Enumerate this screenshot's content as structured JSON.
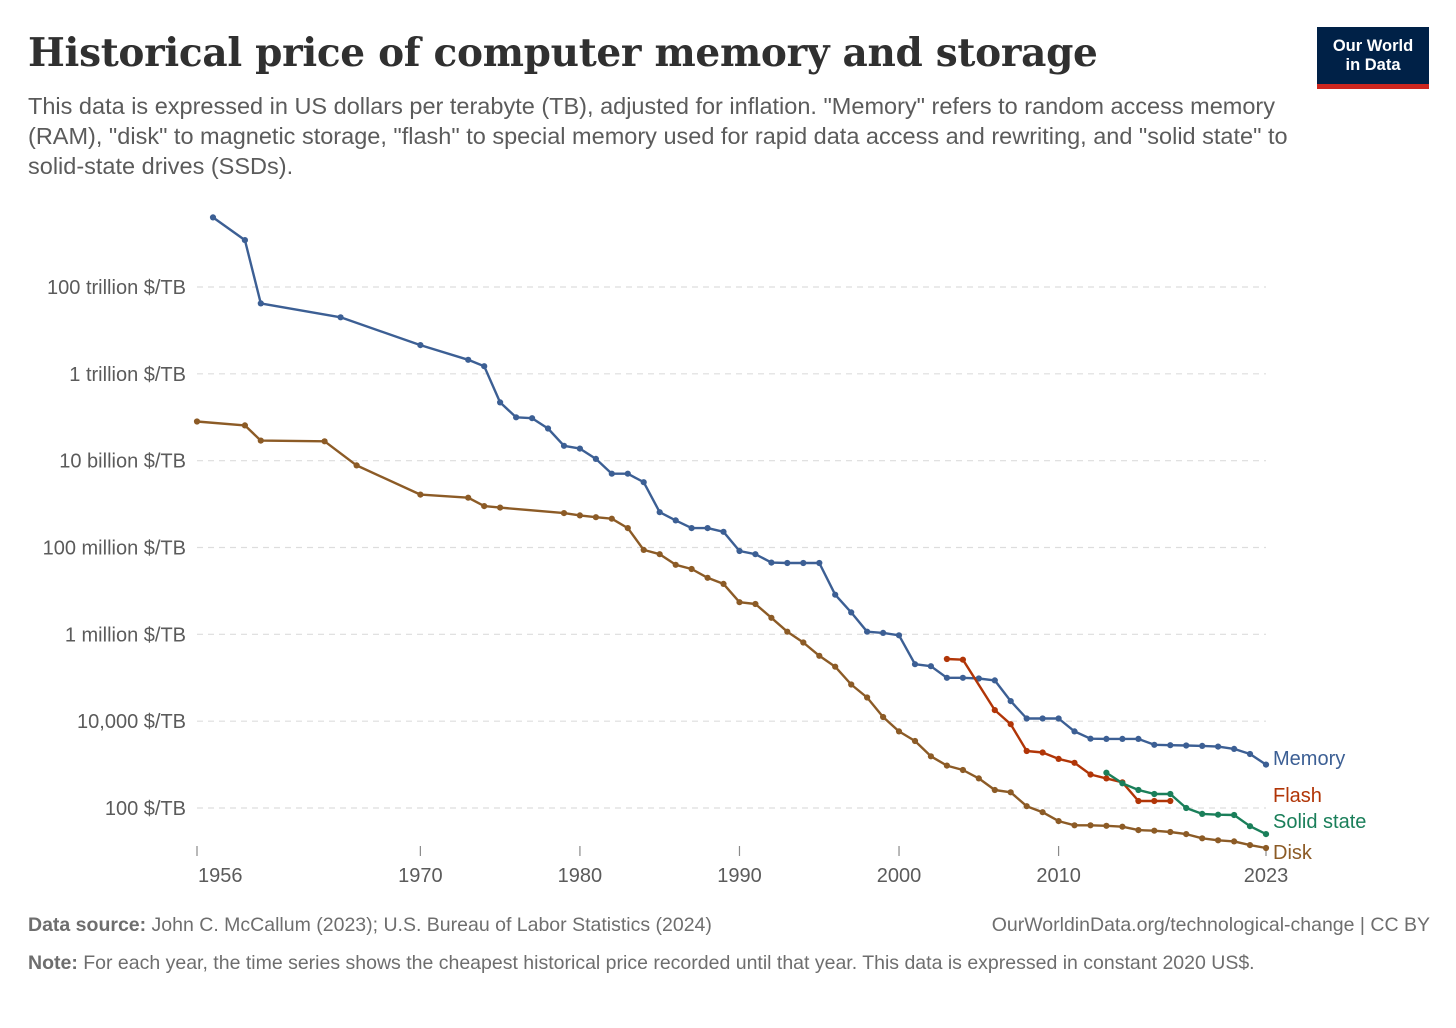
{
  "header": {
    "title": "Historical price of computer memory and storage",
    "subtitle": "This data is expressed in US dollars per terabyte (TB), adjusted for inflation. \"Memory\" refers to random access memory (RAM), \"disk\" to magnetic storage, \"flash\" to special memory used for rapid data access and rewriting, and \"solid state\" to solid-state drives (SSDs).",
    "logo_line1": "Our World",
    "logo_line2": "in Data"
  },
  "footer": {
    "source_label": "Data source:",
    "source_text": " John C. McCallum (2023); U.S. Bureau of Labor Statistics (2024)",
    "url_text": "OurWorldinData.org/technological-change | CC BY",
    "note_label": "Note:",
    "note_text": " For each year, the time series shows the cheapest historical price recorded until that year. This data is expressed in constant 2020 US$."
  },
  "colors": {
    "memory": "#3c5f94",
    "flash": "#b13507",
    "solid_state": "#1a7f5a",
    "disk": "#8c5b26",
    "grid": "#dddddd",
    "axis_text": "#5b5b5b"
  },
  "chart_data": {
    "type": "line",
    "scale": "log",
    "grid": "horizontal dashed",
    "legend": "labels at line ends (right)",
    "x_ticks": [
      {
        "value": 1956,
        "label": "1956"
      },
      {
        "value": 1970,
        "label": "1970"
      },
      {
        "value": 1980,
        "label": "1980"
      },
      {
        "value": 1990,
        "label": "1990"
      },
      {
        "value": 2000,
        "label": "2000"
      },
      {
        "value": 2010,
        "label": "2010"
      },
      {
        "value": 2023,
        "label": "2023"
      }
    ],
    "y_ticks": [
      {
        "value": 100,
        "label": "100 $/TB"
      },
      {
        "value": 10000,
        "label": "10,000 $/TB"
      },
      {
        "value": 1000000,
        "label": "1 million $/TB"
      },
      {
        "value": 100000000,
        "label": "100 million $/TB"
      },
      {
        "value": 10000000000,
        "label": "10 billion $/TB"
      },
      {
        "value": 1000000000000,
        "label": "1 trillion $/TB"
      },
      {
        "value": 100000000000000,
        "label": "100 trillion $/TB"
      }
    ],
    "xlim": [
      1956,
      2023
    ],
    "ylim": [
      10,
      1e+16
    ],
    "series": [
      {
        "name": "Memory",
        "color_key": "memory",
        "points": [
          [
            1957,
            4000000000000000.0
          ],
          [
            1959,
            1200000000000000.0
          ],
          [
            1960,
            42000000000000.0
          ],
          [
            1965,
            20000000000000.0
          ],
          [
            1970,
            4600000000000.0
          ],
          [
            1973,
            2100000000000.0
          ],
          [
            1974,
            1500000000000.0
          ],
          [
            1975,
            220000000000.0
          ],
          [
            1976,
            100000000000.0
          ],
          [
            1977,
            95000000000.0
          ],
          [
            1978,
            55000000000.0
          ],
          [
            1979,
            22000000000.0
          ],
          [
            1980,
            19000000000.0
          ],
          [
            1981,
            11000000000.0
          ],
          [
            1982,
            5000000000.0
          ],
          [
            1983,
            5000000000.0
          ],
          [
            1984,
            3200000000.0
          ],
          [
            1985,
            650000000.0
          ],
          [
            1986,
            420000000.0
          ],
          [
            1987,
            280000000.0
          ],
          [
            1988,
            280000000.0
          ],
          [
            1989,
            230000000.0
          ],
          [
            1990,
            83000000.0
          ],
          [
            1991,
            70000000.0
          ],
          [
            1992,
            45000000.0
          ],
          [
            1993,
            44000000.0
          ],
          [
            1994,
            44000000.0
          ],
          [
            1995,
            44000000.0
          ],
          [
            1996,
            8200000.0
          ],
          [
            1997,
            3200000.0
          ],
          [
            1998,
            1150000.0
          ],
          [
            1999,
            1080000.0
          ],
          [
            2000,
            950000.0
          ],
          [
            2001,
            205000.0
          ],
          [
            2002,
            185000.0
          ],
          [
            2003,
            100000.0
          ],
          [
            2004,
            100000.0
          ],
          [
            2005,
            96000.0
          ],
          [
            2006,
            87000.0
          ],
          [
            2007,
            29000.0
          ],
          [
            2008,
            11500.0
          ],
          [
            2009,
            11500.0
          ],
          [
            2010,
            11500.0
          ],
          [
            2011,
            5800.0
          ],
          [
            2012,
            3950.0
          ],
          [
            2013,
            3900.0
          ],
          [
            2014,
            3900.0
          ],
          [
            2015,
            3900.0
          ],
          [
            2016,
            2850.0
          ],
          [
            2017,
            2800.0
          ],
          [
            2018,
            2750.0
          ],
          [
            2019,
            2700.0
          ],
          [
            2020,
            2600.0
          ],
          [
            2021,
            2300.0
          ],
          [
            2022,
            1750.0
          ],
          [
            2023,
            1000.0
          ]
        ]
      },
      {
        "name": "Flash",
        "color_key": "flash",
        "points": [
          [
            2003,
            270000.0
          ],
          [
            2004,
            260000.0
          ],
          [
            2006,
            18000.0
          ],
          [
            2007,
            8500.0
          ],
          [
            2008,
            2050.0
          ],
          [
            2009,
            1900.0
          ],
          [
            2010,
            1350.0
          ],
          [
            2011,
            1100.0
          ],
          [
            2012,
            590.0
          ],
          [
            2013,
            480.0
          ],
          [
            2014,
            390.0
          ],
          [
            2015,
            145.0
          ],
          [
            2016,
            145.0
          ],
          [
            2017,
            145.0
          ]
        ]
      },
      {
        "name": "Solid state",
        "color_key": "solid_state",
        "points": [
          [
            2013,
            650.0
          ],
          [
            2014,
            370.0
          ],
          [
            2015,
            260.0
          ],
          [
            2016,
            210.0
          ],
          [
            2017,
            210.0
          ],
          [
            2018,
            100.0
          ],
          [
            2019,
            73
          ],
          [
            2020,
            70
          ],
          [
            2021,
            69
          ],
          [
            2022,
            38
          ],
          [
            2023,
            25
          ]
        ]
      },
      {
        "name": "Disk",
        "color_key": "disk",
        "points": [
          [
            1956,
            80000000000.0
          ],
          [
            1959,
            65000000000.0
          ],
          [
            1960,
            29000000000.0
          ],
          [
            1964,
            28000000000.0
          ],
          [
            1966,
            7800000000.0
          ],
          [
            1970,
            1650000000.0
          ],
          [
            1973,
            1400000000.0
          ],
          [
            1974,
            900000000.0
          ],
          [
            1975,
            830000000.0
          ],
          [
            1979,
            620000000.0
          ],
          [
            1980,
            550000000.0
          ],
          [
            1981,
            500000000.0
          ],
          [
            1982,
            460000000.0
          ],
          [
            1983,
            280000000.0
          ],
          [
            1984,
            88000000.0
          ],
          [
            1985,
            70000000.0
          ],
          [
            1986,
            40000000.0
          ],
          [
            1987,
            32000000.0
          ],
          [
            1988,
            20000000.0
          ],
          [
            1989,
            14500000.0
          ],
          [
            1990,
            5500000.0
          ],
          [
            1991,
            5000000.0
          ],
          [
            1992,
            2400000.0
          ],
          [
            1993,
            1150000.0
          ],
          [
            1994,
            650000.0
          ],
          [
            1995,
            320000.0
          ],
          [
            1996,
            180000.0
          ],
          [
            1997,
            70000.0
          ],
          [
            1998,
            35000.0
          ],
          [
            1999,
            12500.0
          ],
          [
            2000,
            5800.0
          ],
          [
            2001,
            3500.0
          ],
          [
            2002,
            1550.0
          ],
          [
            2003,
            950.0
          ],
          [
            2004,
            750.0
          ],
          [
            2005,
            480.0
          ],
          [
            2006,
            260.0
          ],
          [
            2007,
            230.0
          ],
          [
            2008,
            110.0
          ],
          [
            2009,
            80
          ],
          [
            2010,
            50
          ],
          [
            2011,
            40
          ],
          [
            2012,
            40
          ],
          [
            2013,
            39
          ],
          [
            2014,
            37
          ],
          [
            2015,
            31
          ],
          [
            2016,
            30
          ],
          [
            2017,
            28
          ],
          [
            2018,
            25
          ],
          [
            2019,
            20
          ],
          [
            2020,
            18
          ],
          [
            2021,
            17
          ],
          [
            2022,
            14
          ],
          [
            2023,
            12
          ]
        ]
      }
    ]
  }
}
